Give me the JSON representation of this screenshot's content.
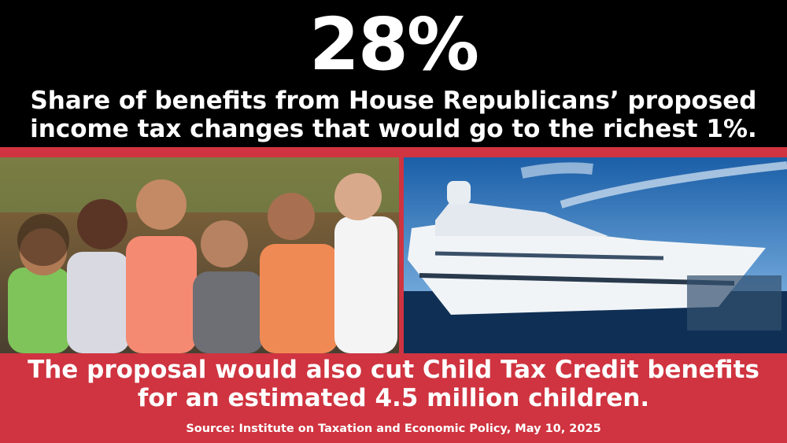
{
  "headline": {
    "stat": "28%",
    "lines": [
      "Share of benefits from House Republicans’ proposed",
      "income tax changes that would go to the richest 1%."
    ]
  },
  "footer": {
    "lines": [
      "The proposal would also cut Child Tax Credit benefits",
      "for an estimated 4.5 million children."
    ],
    "source": "Source: Institute on Taxation and Economic Policy, May 10, 2025"
  }
}
